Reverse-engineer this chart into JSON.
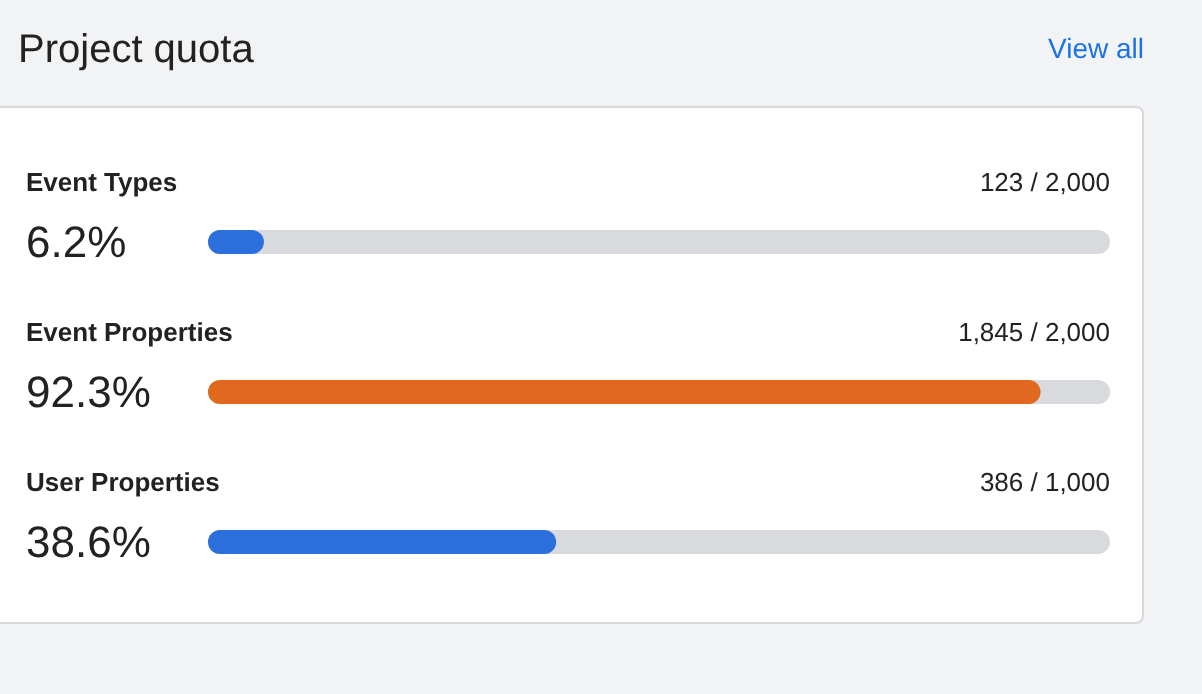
{
  "chart_data": {
    "type": "bar",
    "orientation": "horizontal",
    "title": "Project quota",
    "categories": [
      "Event Types",
      "Event Properties",
      "User Properties"
    ],
    "values": [
      6.2,
      92.3,
      38.6
    ],
    "colors": [
      "#2a6fdb",
      "#e0681f",
      "#2a6fdb"
    ],
    "value_labels": [
      "6.2%",
      "92.3%",
      "38.6%"
    ],
    "xlim": [
      0,
      100
    ],
    "tick_labels": false,
    "annotations": [
      "123 / 2,000",
      "1,845 / 2,000",
      "386 / 1,000",
      "View all"
    ]
  }
}
